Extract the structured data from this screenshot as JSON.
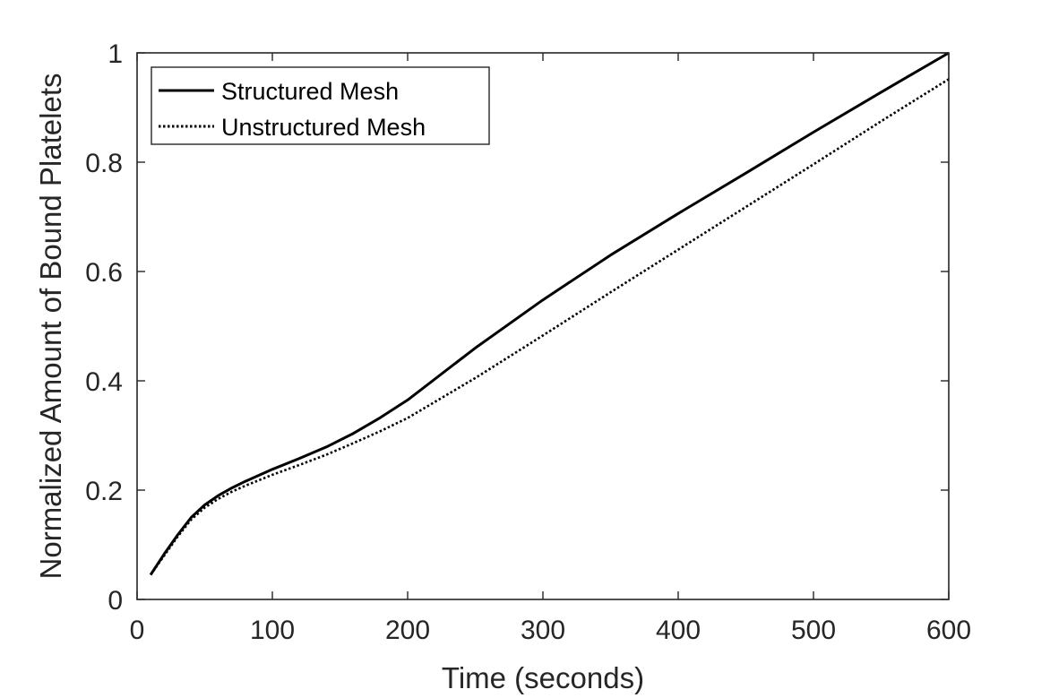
{
  "chart_data": {
    "type": "line",
    "xlabel": "Time (seconds)",
    "ylabel": "Normalized Amount of Bound Platelets",
    "xlim": [
      0,
      600
    ],
    "ylim": [
      0,
      1
    ],
    "xticks": [
      "0",
      "100",
      "200",
      "300",
      "400",
      "500",
      "600"
    ],
    "yticks": [
      "0",
      "0.2",
      "0.4",
      "0.6",
      "0.8",
      "1"
    ],
    "grid": false,
    "legend_position": "top-left",
    "series": [
      {
        "name": "Structured Mesh",
        "style": "solid",
        "x": [
          10,
          20,
          30,
          40,
          50,
          60,
          70,
          80,
          90,
          100,
          120,
          140,
          160,
          180,
          200,
          250,
          300,
          350,
          400,
          450,
          500,
          550,
          600
        ],
        "y": [
          0.045,
          0.083,
          0.118,
          0.15,
          0.173,
          0.19,
          0.204,
          0.216,
          0.227,
          0.238,
          0.258,
          0.279,
          0.304,
          0.333,
          0.365,
          0.46,
          0.548,
          0.63,
          0.706,
          0.78,
          0.855,
          0.928,
          1.0
        ]
      },
      {
        "name": "Unstructured Mesh",
        "style": "dotted",
        "x": [
          10,
          20,
          30,
          40,
          50,
          60,
          70,
          80,
          90,
          100,
          120,
          140,
          160,
          180,
          200,
          250,
          300,
          350,
          400,
          450,
          500,
          550,
          600
        ],
        "y": [
          0.045,
          0.08,
          0.115,
          0.146,
          0.168,
          0.184,
          0.197,
          0.208,
          0.218,
          0.228,
          0.246,
          0.265,
          0.286,
          0.308,
          0.332,
          0.405,
          0.483,
          0.562,
          0.64,
          0.718,
          0.796,
          0.875,
          0.952
        ]
      }
    ]
  }
}
